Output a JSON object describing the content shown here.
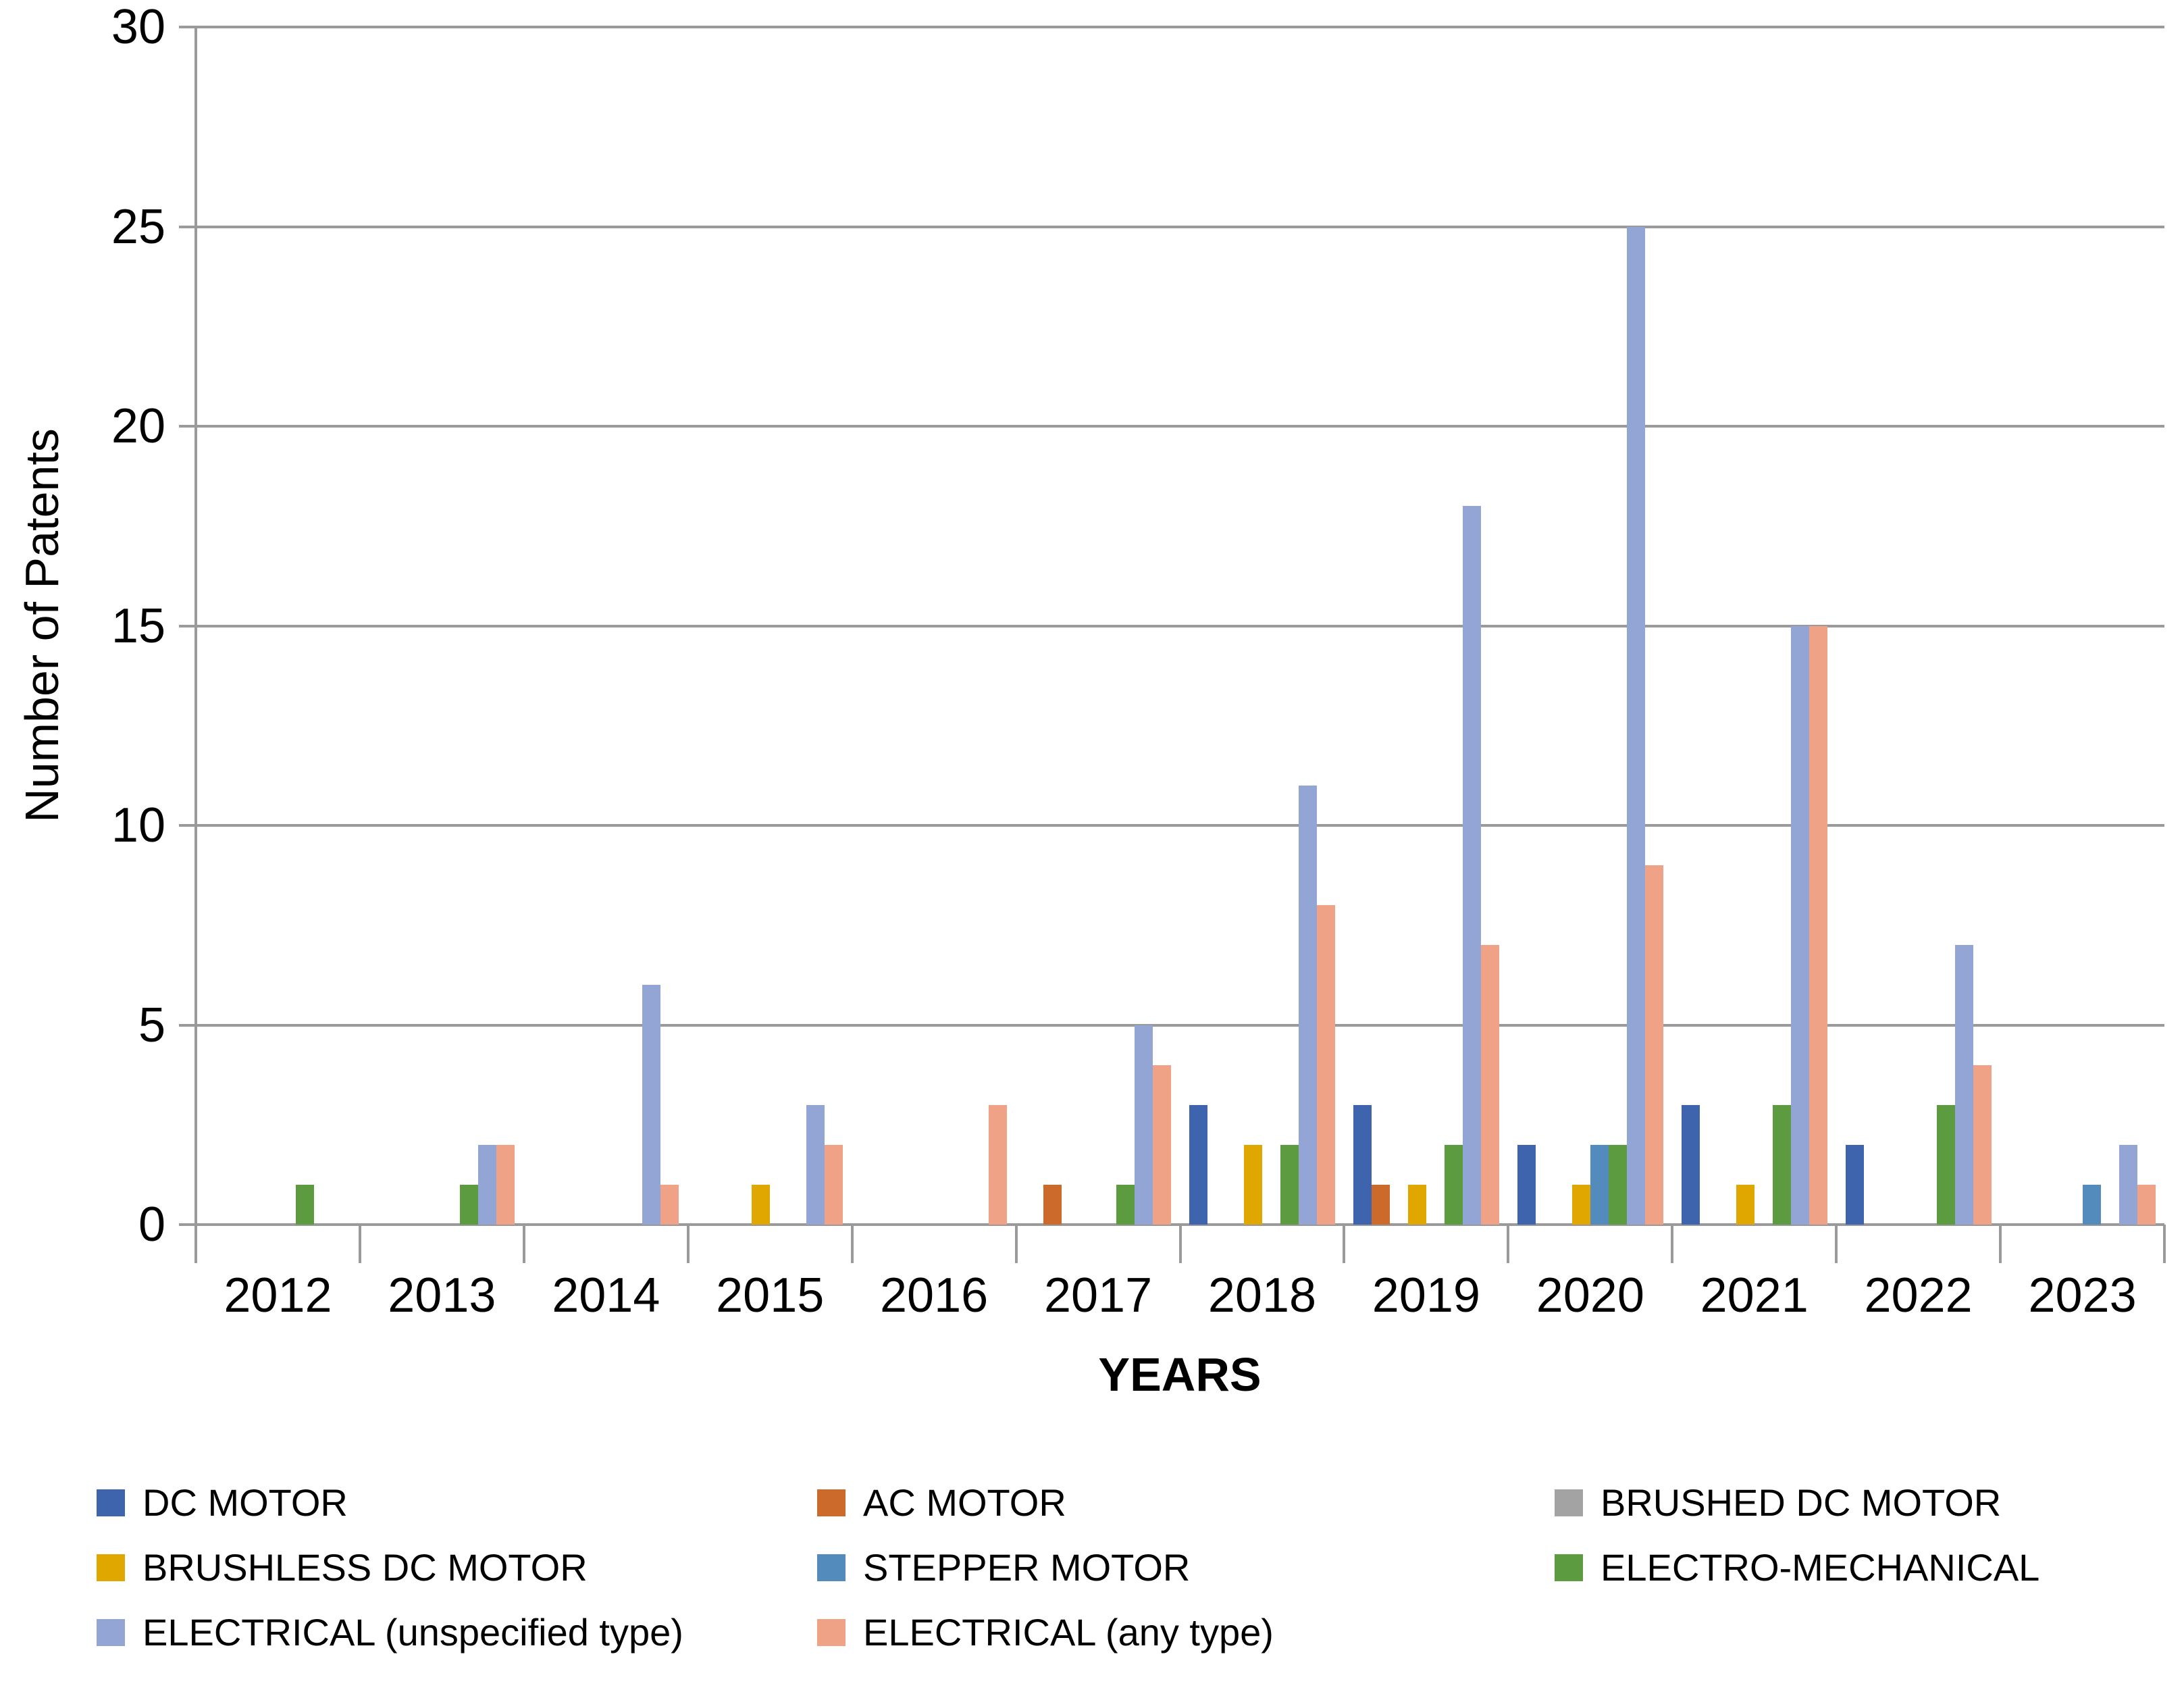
{
  "page": {
    "background": "#FFFFFF",
    "text_color": "#000000",
    "axis_color": "#9A9A9A"
  },
  "chart_data": {
    "type": "bar",
    "title": "",
    "xlabel": "YEARS",
    "ylabel": "Number of Patents",
    "ylim": [
      0,
      30
    ],
    "yticks": [
      0,
      5,
      10,
      15,
      20,
      25,
      30
    ],
    "grid": true,
    "legend_position": "bottom",
    "categories": [
      "2012",
      "2013",
      "2014",
      "2015",
      "2016",
      "2017",
      "2018",
      "2019",
      "2020",
      "2021",
      "2022",
      "2023"
    ],
    "series": [
      {
        "name": "DC MOTOR",
        "color": "#3E64AD",
        "values": [
          0,
          0,
          0,
          0,
          0,
          0,
          3,
          3,
          2,
          3,
          2,
          0
        ]
      },
      {
        "name": "AC MOTOR",
        "color": "#CC6A2B",
        "values": [
          0,
          0,
          0,
          0,
          0,
          1,
          0,
          1,
          0,
          0,
          0,
          0
        ]
      },
      {
        "name": "BRUSHED DC MOTOR",
        "color": "#A3A3A3",
        "values": [
          0,
          0,
          0,
          0,
          0,
          0,
          0,
          0,
          0,
          0,
          0,
          0
        ]
      },
      {
        "name": "BRUSHLESS DC MOTOR",
        "color": "#DFA700",
        "values": [
          0,
          0,
          0,
          1,
          0,
          0,
          2,
          1,
          1,
          1,
          0,
          0
        ]
      },
      {
        "name": "STEPPER MOTOR",
        "color": "#538CBC",
        "values": [
          0,
          0,
          0,
          0,
          0,
          0,
          0,
          0,
          2,
          0,
          0,
          1
        ]
      },
      {
        "name": "ELECTRO-MECHANICAL",
        "color": "#5C9B40",
        "values": [
          1,
          1,
          0,
          0,
          0,
          1,
          2,
          2,
          2,
          3,
          3,
          0
        ]
      },
      {
        "name": "ELECTRICAL (unspecified type)",
        "color": "#93A5D4",
        "values": [
          0,
          2,
          6,
          3,
          0,
          5,
          11,
          18,
          25,
          15,
          7,
          2
        ]
      },
      {
        "name": "ELECTRICAL (any type)",
        "color": "#F0A287",
        "values": [
          0,
          2,
          1,
          2,
          3,
          4,
          8,
          7,
          9,
          15,
          4,
          1
        ]
      }
    ]
  }
}
